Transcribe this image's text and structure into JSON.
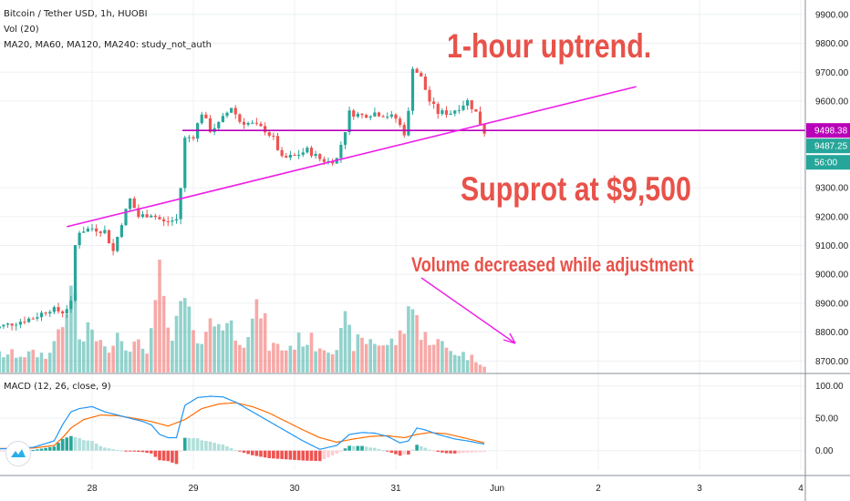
{
  "header": {
    "symbol_line": "Bitcoin / Tether USD, 1h, HUOBI",
    "volume_line": "Vol (20)",
    "ma_line": "MA20, MA60, MA120, MA240: study_not_auth",
    "macd_line": "MACD (12, 26, close, 9)"
  },
  "annotations": {
    "uptrend": "1-hour uptrend.",
    "support": "Supprot at $9,500",
    "volume_note": "Volume decreased while adjustment"
  },
  "price_axis": {
    "ticks": [
      "9900.00",
      "9800.00",
      "9700.00",
      "9600.00",
      "9300.00",
      "9200.00",
      "9100.00",
      "9000.00",
      "8900.00",
      "8800.00",
      "8700.00"
    ],
    "tick_values": [
      9900,
      9800,
      9700,
      9600,
      9300,
      9200,
      9100,
      9000,
      8900,
      8800,
      8700
    ],
    "labels": [
      {
        "text": "9498.38",
        "value": 9498.38,
        "color": "#b800b8"
      },
      {
        "text": "9487.25",
        "value": 9487.25,
        "color": "#26a69a"
      },
      {
        "text": "56:00",
        "value": 9472,
        "color": "#26a69a"
      }
    ]
  },
  "macd_axis": {
    "ticks": [
      "100.00",
      "50.00",
      "0.00"
    ],
    "tick_values": [
      100,
      50,
      0
    ]
  },
  "time_axis": {
    "labels": [
      "28",
      "29",
      "30",
      "31",
      "Jun",
      "2",
      "3",
      "4"
    ],
    "hour_offsets": [
      24,
      48,
      72,
      96,
      120,
      144,
      168,
      192
    ]
  },
  "colors": {
    "up": "#26a69a",
    "down": "#ef5350",
    "support_line": "#b800b8",
    "trend_line": "#ee1de8",
    "annotation": "#e8524a",
    "macd_line": "#2196f3",
    "signal_line": "#ff6d00",
    "tv_logo": "#2aaee8"
  },
  "chart_data": {
    "type": "candlestick",
    "title": "Bitcoin / Tether USD, 1h, HUOBI",
    "x_unit": "hours since chart start",
    "price_range": [
      8660,
      9950
    ],
    "price_keypoints": [
      [
        0,
        8810
      ],
      [
        5,
        8830
      ],
      [
        10,
        8850
      ],
      [
        14,
        8880
      ],
      [
        17,
        8870
      ],
      [
        19,
        8900
      ],
      [
        20,
        9100
      ],
      [
        21,
        9150
      ],
      [
        24,
        9160
      ],
      [
        27,
        9150
      ],
      [
        29,
        9080
      ],
      [
        31,
        9180
      ],
      [
        33,
        9260
      ],
      [
        35,
        9200
      ],
      [
        38,
        9210
      ],
      [
        41,
        9180
      ],
      [
        44,
        9190
      ],
      [
        45,
        9300
      ],
      [
        46,
        9470
      ],
      [
        48,
        9480
      ],
      [
        50,
        9560
      ],
      [
        52,
        9500
      ],
      [
        54,
        9520
      ],
      [
        57,
        9580
      ],
      [
        59,
        9530
      ],
      [
        62,
        9520
      ],
      [
        65,
        9500
      ],
      [
        67,
        9470
      ],
      [
        69,
        9400
      ],
      [
        72,
        9410
      ],
      [
        75,
        9430
      ],
      [
        78,
        9400
      ],
      [
        80,
        9390
      ],
      [
        82,
        9400
      ],
      [
        84,
        9500
      ],
      [
        85,
        9560
      ],
      [
        88,
        9550
      ],
      [
        91,
        9560
      ],
      [
        94,
        9550
      ],
      [
        96,
        9540
      ],
      [
        98,
        9490
      ],
      [
        99,
        9560
      ],
      [
        100,
        9720
      ],
      [
        102,
        9680
      ],
      [
        104,
        9600
      ],
      [
        106,
        9560
      ],
      [
        109,
        9560
      ],
      [
        111,
        9580
      ],
      [
        113,
        9600
      ],
      [
        115,
        9560
      ],
      [
        117,
        9487
      ]
    ],
    "volume_series": [
      [
        0,
        1.0
      ],
      [
        14,
        1.0
      ],
      [
        17,
        3.2
      ],
      [
        18,
        2.5
      ],
      [
        19,
        4.4
      ],
      [
        20,
        4.8
      ],
      [
        21,
        1.6
      ],
      [
        24,
        2.4
      ],
      [
        27,
        1.2
      ],
      [
        30,
        2.2
      ],
      [
        33,
        1.5
      ],
      [
        37,
        1.4
      ],
      [
        39,
        3.2
      ],
      [
        40,
        5.0
      ],
      [
        43,
        1.4
      ],
      [
        45,
        3.8
      ],
      [
        47,
        3.2
      ],
      [
        48,
        1.8
      ],
      [
        52,
        2.6
      ],
      [
        55,
        2.9
      ],
      [
        60,
        1.9
      ],
      [
        64,
        3.6
      ],
      [
        66,
        1.5
      ],
      [
        70,
        1.3
      ],
      [
        74,
        1.9
      ],
      [
        78,
        1.5
      ],
      [
        82,
        1.4
      ],
      [
        84,
        2.6
      ],
      [
        86,
        1.6
      ],
      [
        90,
        1.8
      ],
      [
        94,
        1.5
      ],
      [
        97,
        1.9
      ],
      [
        99,
        3.2
      ],
      [
        100,
        4.7
      ],
      [
        102,
        1.8
      ],
      [
        104,
        2.0
      ],
      [
        108,
        1.3
      ],
      [
        112,
        1.0
      ],
      [
        116,
        0.6
      ],
      [
        117,
        0.3
      ]
    ],
    "macd_series": [
      [
        0,
        2
      ],
      [
        10,
        5
      ],
      [
        15,
        15
      ],
      [
        17,
        40
      ],
      [
        19,
        60
      ],
      [
        21,
        65
      ],
      [
        24,
        68
      ],
      [
        27,
        60
      ],
      [
        30,
        55
      ],
      [
        33,
        50
      ],
      [
        36,
        45
      ],
      [
        38,
        40
      ],
      [
        40,
        25
      ],
      [
        42,
        20
      ],
      [
        44,
        20
      ],
      [
        45,
        45
      ],
      [
        46,
        70
      ],
      [
        49,
        82
      ],
      [
        52,
        84
      ],
      [
        55,
        83
      ],
      [
        58,
        75
      ],
      [
        62,
        60
      ],
      [
        66,
        45
      ],
      [
        70,
        30
      ],
      [
        74,
        15
      ],
      [
        78,
        2
      ],
      [
        82,
        8
      ],
      [
        85,
        25
      ],
      [
        88,
        28
      ],
      [
        91,
        27
      ],
      [
        94,
        22
      ],
      [
        97,
        12
      ],
      [
        99,
        15
      ],
      [
        101,
        35
      ],
      [
        103,
        32
      ],
      [
        106,
        25
      ],
      [
        110,
        18
      ],
      [
        113,
        15
      ],
      [
        117,
        10
      ]
    ],
    "signal_series": [
      [
        0,
        3
      ],
      [
        10,
        4
      ],
      [
        15,
        8
      ],
      [
        17,
        20
      ],
      [
        19,
        35
      ],
      [
        22,
        48
      ],
      [
        26,
        55
      ],
      [
        30,
        54
      ],
      [
        34,
        50
      ],
      [
        38,
        45
      ],
      [
        42,
        38
      ],
      [
        46,
        48
      ],
      [
        50,
        65
      ],
      [
        54,
        72
      ],
      [
        58,
        74
      ],
      [
        62,
        68
      ],
      [
        66,
        58
      ],
      [
        70,
        45
      ],
      [
        74,
        32
      ],
      [
        78,
        20
      ],
      [
        82,
        13
      ],
      [
        86,
        18
      ],
      [
        90,
        22
      ],
      [
        94,
        23
      ],
      [
        98,
        20
      ],
      [
        101,
        25
      ],
      [
        104,
        28
      ],
      [
        108,
        26
      ],
      [
        112,
        20
      ],
      [
        117,
        12
      ]
    ],
    "macd_range": [
      -30,
      115
    ],
    "horizontal_support": 9498.38,
    "trendline": {
      "from": [
        18,
        9165
      ],
      "to": [
        121,
        9478
      ],
      "extend_to": [
        153,
        9650
      ]
    },
    "volume_arrow": {
      "from": [
        108,
        9720
      ],
      "to": [
        135,
        9550
      ]
    },
    "last_price": 9487.25
  }
}
